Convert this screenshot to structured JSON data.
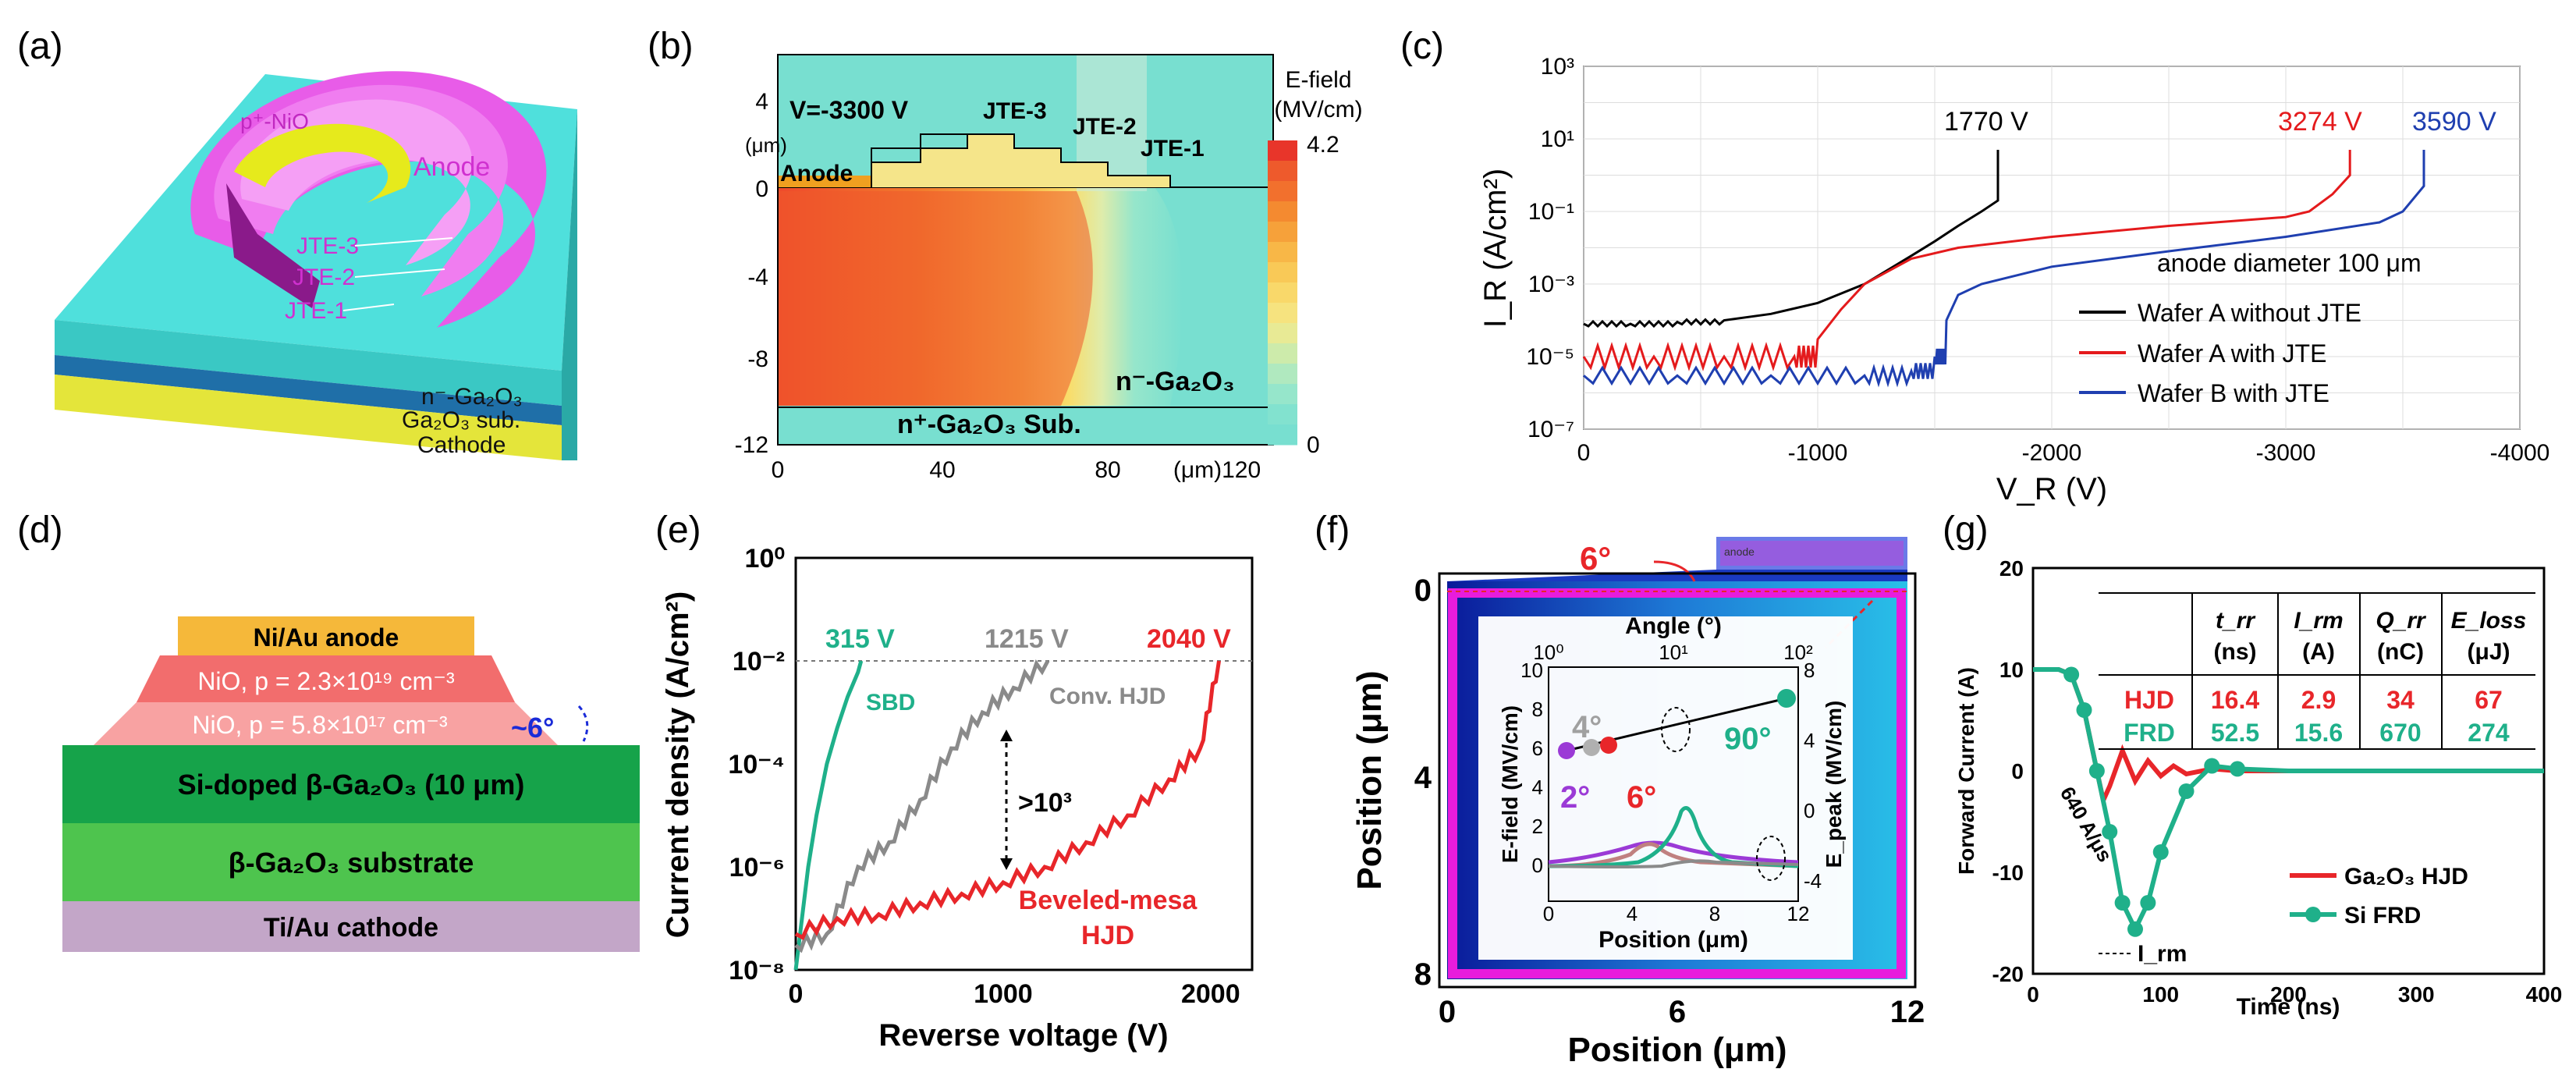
{
  "panels": {
    "a": {
      "letter": "(a)",
      "labels": [
        "p⁺-NiO",
        "Anode",
        "JTE-3",
        "JTE-2",
        "JTE-1",
        "n⁻-Ga₂O₃",
        "Ga₂O₃ sub.",
        "Cathode"
      ]
    },
    "b": {
      "letter": "(b)",
      "voltage": "V=-3300 V",
      "jte": [
        "JTE-3",
        "JTE-2",
        "JTE-1"
      ],
      "anode": "Anode",
      "region_top": "n⁻-Ga₂O₃",
      "region_bottom": "n⁺-Ga₂O₃ Sub.",
      "y_ticks": [
        "4",
        "0",
        "-4",
        "-8",
        "-12"
      ],
      "y_unit": "(μm)",
      "x_ticks": [
        "0",
        "40",
        "80"
      ],
      "x_unit": "(μm)120",
      "cbar_title": [
        "E-field",
        "(MV/cm)"
      ],
      "cbar_max": "4.2",
      "cbar_min": "0",
      "cbar_colors": [
        "#e8352a",
        "#ee5a2c",
        "#f2702d",
        "#f48a30",
        "#f6a13a",
        "#f8b747",
        "#f9c957",
        "#f9d86a",
        "#f6e37f",
        "#e8ea95",
        "#cdebab",
        "#b0e9bf",
        "#96e6cb",
        "#82e2cf",
        "#78dfd0"
      ]
    },
    "c": {
      "letter": "(c)",
      "ylabel": "I_R (A/cm²)",
      "xlabel": "V_R (V)",
      "y_ticks": [
        "10³",
        "10¹",
        "10⁻¹",
        "10⁻³",
        "10⁻⁵",
        "10⁻⁷"
      ],
      "x_ticks": [
        "0",
        "-1000",
        "-2000",
        "-3000",
        "-4000"
      ],
      "annotations": [
        "1770 V",
        "3274 V",
        "3590 V"
      ],
      "note": "anode diameter 100 μm"
    },
    "d": {
      "letter": "(d)",
      "layers": [
        "Ni/Au anode",
        "NiO, p = 2.3×10¹⁹ cm⁻³",
        "NiO, p = 5.8×10¹⁷ cm⁻³",
        "Si-doped β-Ga₂O₃ (10 μm)",
        "β-Ga₂O₃ substrate",
        "Ti/Au cathode"
      ],
      "angle": "~6°"
    },
    "e": {
      "letter": "(e)",
      "ylabel": "Current density (A/cm²)",
      "xlabel": "Reverse voltage (V)",
      "y_ticks": [
        "10⁰",
        "10⁻²",
        "10⁻⁴",
        "10⁻⁶",
        "10⁻⁸"
      ],
      "x_ticks": [
        "0",
        "1000",
        "2000"
      ],
      "ann_315": "315 V",
      "ann_1215": "1215 V",
      "ann_2040": "2040 V",
      "sbd": "SBD",
      "conv": "Conv. HJD",
      "ratio": ">10³",
      "beveled": [
        "Beveled-mesa",
        "HJD"
      ]
    },
    "f": {
      "letter": "(f)",
      "ylabel": "Position (μm)",
      "xlabel": "Position (μm)",
      "y_ticks": [
        "0",
        "4",
        "8"
      ],
      "x_ticks": [
        "0",
        "6",
        "12"
      ],
      "angle_top": "6°",
      "anode": "anode",
      "inset": {
        "top_label": "Angle (°)",
        "top_ticks": [
          "10⁰",
          "10¹",
          "10²"
        ],
        "left_label": "E-field (MV/cm)",
        "right_label": "E_peak (MV/cm)",
        "bottom_label": "Position (μm)",
        "left_ticks": [
          "10",
          "8",
          "6",
          "4",
          "2",
          "0"
        ],
        "right_ticks": [
          "8",
          "4",
          "0",
          "-4"
        ],
        "bottom_ticks": [
          "0",
          "4",
          "8",
          "12"
        ],
        "a4": "4°",
        "a90": "90°",
        "a2": "2°",
        "a6": "6°"
      }
    },
    "g": {
      "letter": "(g)",
      "ylabel": "Forward Current (A)",
      "xlabel": "Time (ns)",
      "y_ticks": [
        "20",
        "10",
        "0",
        "-10",
        "-20"
      ],
      "x_ticks": [
        "0",
        "100",
        "200",
        "300",
        "400"
      ],
      "slope": "640 A/μs",
      "irm": "I_rm",
      "legend": [
        "Ga₂O₃ HJD",
        "Si FRD"
      ],
      "table": {
        "headers": [
          [
            "t_rr",
            "(ns)"
          ],
          [
            "I_rm",
            "(A)"
          ],
          [
            "Q_rr",
            "(nC)"
          ],
          [
            "E_loss",
            "(μJ)"
          ]
        ],
        "rows": [
          {
            "name": "HJD",
            "values": [
              "16.4",
              "2.9",
              "34",
              "67"
            ]
          },
          {
            "name": "FRD",
            "values": [
              "52.5",
              "15.6",
              "670",
              "274"
            ]
          }
        ]
      }
    }
  },
  "chart_data": [
    {
      "type": "line",
      "panel": "c",
      "title": "",
      "xlabel": "V_R (V)",
      "ylabel": "I_R (A/cm²)",
      "xlim": [
        0,
        -4000
      ],
      "ylim": [
        1e-07,
        1000.0
      ],
      "yscale": "log",
      "series": [
        {
          "name": "Wafer A without JTE",
          "color": "#000000",
          "x": [
            0,
            -200,
            -400,
            -600,
            -800,
            -1000,
            -1200,
            -1400,
            -1500,
            -1600,
            -1700,
            -1770,
            -1770
          ],
          "y": [
            8e-05,
            8e-05,
            9e-05,
            0.0001,
            0.00015,
            0.0003,
            0.001,
            0.006,
            0.015,
            0.04,
            0.1,
            0.2,
            5
          ]
        },
        {
          "name": "Wafer A with JTE",
          "color": "#e41a1c",
          "x": [
            0,
            -300,
            -600,
            -900,
            -1000,
            -1100,
            -1200,
            -1400,
            -1600,
            -2000,
            -2500,
            -3000,
            -3100,
            -3200,
            -3274,
            -3274
          ],
          "y": [
            1e-05,
            1e-05,
            1e-05,
            1e-05,
            3e-05,
            0.0002,
            0.001,
            0.005,
            0.01,
            0.02,
            0.04,
            0.07,
            0.1,
            0.3,
            1,
            5
          ]
        },
        {
          "name": "Wafer B with JTE",
          "color": "#1f3fb0",
          "x": [
            0,
            -400,
            -800,
            -1200,
            -1400,
            -1500,
            -1550,
            -1600,
            -1700,
            -2000,
            -2500,
            -3000,
            -3400,
            -3500,
            -3590,
            -3590
          ],
          "y": [
            3e-06,
            3e-06,
            3e-06,
            3e-06,
            4e-06,
            1e-05,
            0.0001,
            0.0005,
            0.001,
            0.003,
            0.008,
            0.02,
            0.05,
            0.1,
            0.5,
            5
          ]
        }
      ]
    },
    {
      "type": "line",
      "panel": "e",
      "title": "",
      "xlabel": "Reverse voltage (V)",
      "ylabel": "Current density (A/cm²)",
      "xlim": [
        0,
        2200
      ],
      "ylim": [
        1e-08,
        1
      ],
      "yscale": "log",
      "series": [
        {
          "name": "SBD",
          "color": "#1fb08a",
          "x": [
            0,
            30,
            60,
            100,
            150,
            200,
            250,
            300,
            315
          ],
          "y": [
            1e-08,
            1e-07,
            1e-06,
            1e-05,
            0.0001,
            0.0005,
            0.002,
            0.006,
            0.01
          ]
        },
        {
          "name": "Conv. HJD",
          "color": "#8a8a8a",
          "x": [
            0,
            150,
            300,
            450,
            600,
            750,
            900,
            1050,
            1215
          ],
          "y": [
            3e-08,
            5e-08,
            1e-06,
            3e-06,
            2e-05,
            0.0002,
            0.001,
            0.003,
            0.01
          ]
        },
        {
          "name": "Beveled-mesa HJD",
          "color": "#e8262a",
          "x": [
            0,
            200,
            400,
            600,
            800,
            1000,
            1200,
            1400,
            1600,
            1800,
            1950,
            2040
          ],
          "y": [
            5e-08,
            1e-07,
            1.2e-07,
            2e-07,
            3e-07,
            5e-07,
            1e-06,
            3e-06,
            1e-05,
            5e-05,
            0.0002,
            0.01
          ]
        }
      ]
    },
    {
      "type": "line",
      "panel": "g",
      "title": "",
      "xlabel": "Time (ns)",
      "ylabel": "Forward Current (A)",
      "xlim": [
        0,
        400
      ],
      "ylim": [
        -20,
        20
      ],
      "series": [
        {
          "name": "Ga₂O₃ HJD",
          "color": "#e8262a",
          "x": [
            0,
            20,
            30,
            40,
            45,
            50,
            55,
            60,
            70,
            80,
            90,
            100,
            110,
            120,
            140,
            160,
            200,
            300,
            400
          ],
          "y": [
            10,
            10,
            9.5,
            6,
            3,
            0,
            -2.9,
            -1.5,
            2,
            -1,
            1,
            -0.5,
            0.5,
            -0.3,
            0.2,
            0,
            0,
            0,
            0
          ]
        },
        {
          "name": "Si FRD",
          "color": "#1fb08a",
          "x": [
            0,
            20,
            30,
            40,
            50,
            60,
            70,
            80,
            90,
            100,
            120,
            140,
            160,
            200,
            300,
            400
          ],
          "y": [
            10,
            10,
            9.5,
            6,
            0,
            -6,
            -13,
            -15.6,
            -13,
            -8,
            -2,
            0.5,
            0.2,
            0,
            0,
            0
          ]
        }
      ]
    }
  ]
}
